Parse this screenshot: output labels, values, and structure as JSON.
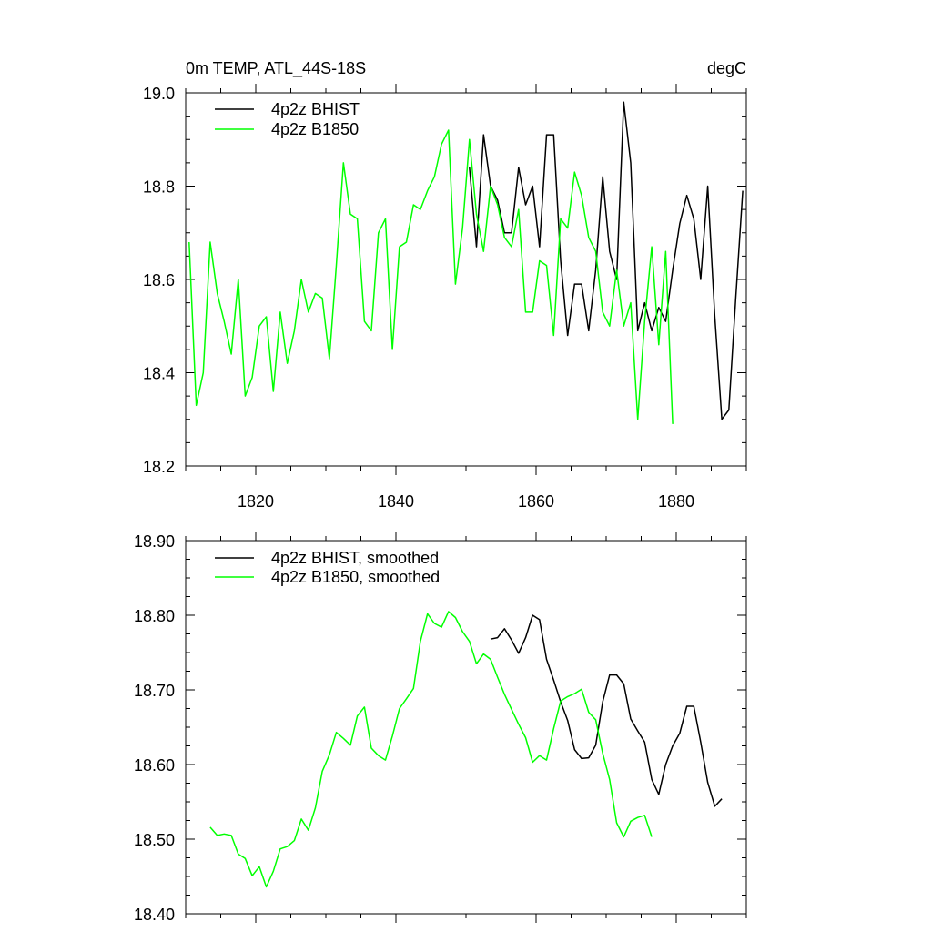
{
  "chart_data": [
    {
      "type": "line",
      "title": "0m TEMP, ATL_44S-18S",
      "units": "degC",
      "xlim": [
        1810,
        1890
      ],
      "ylim": [
        18.2,
        19.0
      ],
      "x_ticks": [
        1820,
        1840,
        1860,
        1880
      ],
      "x_tick_labels": [
        "1820",
        "1840",
        "1860",
        "1880"
      ],
      "y_ticks": [
        18.2,
        18.4,
        18.6,
        18.8,
        19.0
      ],
      "y_tick_labels": [
        "18.2",
        "18.4",
        "18.6",
        "18.8",
        "19.0"
      ],
      "legend_position": "top-left",
      "grid": false,
      "series": [
        {
          "name": "4p2z BHIST",
          "color": "#000000",
          "x": [
            1850.5,
            1851.5,
            1852.5,
            1853.5,
            1854.5,
            1855.5,
            1856.5,
            1857.5,
            1858.5,
            1859.5,
            1860.5,
            1861.5,
            1862.5,
            1863.5,
            1864.5,
            1865.5,
            1866.5,
            1867.5,
            1868.5,
            1869.5,
            1870.5,
            1871.5,
            1872.5,
            1873.5,
            1874.5,
            1875.5,
            1876.5,
            1877.5,
            1878.5,
            1879.5,
            1880.5,
            1881.5,
            1882.5,
            1883.5,
            1884.5,
            1885.5,
            1886.5,
            1887.5,
            1888.5,
            1889.5
          ],
          "values": [
            18.84,
            18.67,
            18.91,
            18.8,
            18.77,
            18.7,
            18.7,
            18.84,
            18.76,
            18.8,
            18.67,
            18.91,
            18.91,
            18.64,
            18.48,
            18.59,
            18.59,
            18.49,
            18.62,
            18.82,
            18.66,
            18.6,
            18.98,
            18.85,
            18.49,
            18.55,
            18.49,
            18.54,
            18.51,
            18.62,
            18.72,
            18.78,
            18.73,
            18.6,
            18.8,
            18.52,
            18.3,
            18.32,
            18.56,
            18.79
          ]
        },
        {
          "name": "4p2z B1850",
          "color": "#00ff00",
          "x": [
            1810.5,
            1811.5,
            1812.5,
            1813.5,
            1814.5,
            1815.5,
            1816.5,
            1817.5,
            1818.5,
            1819.5,
            1820.5,
            1821.5,
            1822.5,
            1823.5,
            1824.5,
            1825.5,
            1826.5,
            1827.5,
            1828.5,
            1829.5,
            1830.5,
            1831.5,
            1832.5,
            1833.5,
            1834.5,
            1835.5,
            1836.5,
            1837.5,
            1838.5,
            1839.5,
            1840.5,
            1841.5,
            1842.5,
            1843.5,
            1844.5,
            1845.5,
            1846.5,
            1847.5,
            1848.5,
            1849.5,
            1850.5,
            1851.5,
            1852.5,
            1853.5,
            1854.5,
            1855.5,
            1856.5,
            1857.5,
            1858.5,
            1859.5,
            1860.5,
            1861.5,
            1862.5,
            1863.5,
            1864.5,
            1865.5,
            1866.5,
            1867.5,
            1868.5,
            1869.5,
            1870.5,
            1871.5,
            1872.5,
            1873.5,
            1874.5,
            1875.5,
            1876.5,
            1877.5,
            1878.5,
            1879.5
          ],
          "values": [
            18.68,
            18.33,
            18.4,
            18.68,
            18.57,
            18.51,
            18.44,
            18.6,
            18.35,
            18.39,
            18.5,
            18.52,
            18.36,
            18.53,
            18.42,
            18.49,
            18.6,
            18.53,
            18.57,
            18.56,
            18.43,
            18.63,
            18.85,
            18.74,
            18.73,
            18.51,
            18.49,
            18.7,
            18.73,
            18.45,
            18.67,
            18.68,
            18.76,
            18.75,
            18.79,
            18.82,
            18.89,
            18.92,
            18.59,
            18.71,
            18.9,
            18.74,
            18.66,
            18.8,
            18.76,
            18.69,
            18.67,
            18.75,
            18.53,
            18.53,
            18.64,
            18.63,
            18.48,
            18.73,
            18.71,
            18.83,
            18.78,
            18.69,
            18.66,
            18.53,
            18.5,
            18.62,
            18.5,
            18.55,
            18.3,
            18.51,
            18.67,
            18.46,
            18.66,
            18.29
          ]
        }
      ]
    },
    {
      "type": "line",
      "xlim": [
        1810,
        1890
      ],
      "ylim": [
        18.4,
        18.9
      ],
      "y_ticks": [
        18.4,
        18.5,
        18.6,
        18.7,
        18.8,
        18.9
      ],
      "y_tick_labels": [
        "18.40",
        "18.50",
        "18.60",
        "18.70",
        "18.80",
        "18.90"
      ],
      "legend_position": "top-left",
      "grid": false,
      "series": [
        {
          "name": "4p2z BHIST, smoothed",
          "color": "#000000",
          "x": [
            1853.5,
            1854.5,
            1855.5,
            1856.5,
            1857.5,
            1858.5,
            1859.5,
            1860.5,
            1861.5,
            1862.5,
            1863.5,
            1864.5,
            1865.5,
            1866.5,
            1867.5,
            1868.5,
            1869.5,
            1870.5,
            1871.5,
            1872.5,
            1873.5,
            1874.5,
            1875.5,
            1876.5,
            1877.5,
            1878.5,
            1879.5,
            1880.5,
            1881.5,
            1882.5,
            1883.5,
            1884.5,
            1885.5,
            1886.5
          ],
          "values": [
            18.768,
            18.77,
            18.782,
            18.767,
            18.749,
            18.77,
            18.8,
            18.794,
            18.741,
            18.713,
            18.684,
            18.659,
            18.62,
            18.608,
            18.609,
            18.626,
            18.684,
            18.72,
            18.72,
            18.708,
            18.661,
            18.645,
            18.63,
            18.58,
            18.56,
            18.6,
            18.625,
            18.642,
            18.678,
            18.678,
            18.63,
            18.576,
            18.544,
            18.554
          ]
        },
        {
          "name": "4p2z B1850, smoothed",
          "color": "#00ff00",
          "x": [
            1813.5,
            1814.5,
            1815.5,
            1816.5,
            1817.5,
            1818.5,
            1819.5,
            1820.5,
            1821.5,
            1822.5,
            1823.5,
            1824.5,
            1825.5,
            1826.5,
            1827.5,
            1828.5,
            1829.5,
            1830.5,
            1831.5,
            1832.5,
            1833.5,
            1834.5,
            1835.5,
            1836.5,
            1837.5,
            1838.5,
            1839.5,
            1840.5,
            1841.5,
            1842.5,
            1843.5,
            1844.5,
            1845.5,
            1846.5,
            1847.5,
            1848.5,
            1849.5,
            1850.5,
            1851.5,
            1852.5,
            1853.5,
            1854.5,
            1855.5,
            1856.5,
            1857.5,
            1858.5,
            1859.5,
            1860.5,
            1861.5,
            1862.5,
            1863.5,
            1864.5,
            1865.5,
            1866.5,
            1867.5,
            1868.5,
            1869.5,
            1870.5,
            1871.5,
            1872.5,
            1873.5,
            1874.5,
            1875.5,
            1876.5
          ],
          "values": [
            18.516,
            18.505,
            18.507,
            18.505,
            18.48,
            18.474,
            18.451,
            18.463,
            18.436,
            18.457,
            18.487,
            18.49,
            18.498,
            18.527,
            18.512,
            18.542,
            18.591,
            18.613,
            18.643,
            18.635,
            18.626,
            18.665,
            18.677,
            18.622,
            18.612,
            18.606,
            18.638,
            18.675,
            18.688,
            18.702,
            18.765,
            18.802,
            18.789,
            18.784,
            18.805,
            18.797,
            18.778,
            18.765,
            18.735,
            18.748,
            18.741,
            18.717,
            18.694,
            18.674,
            18.654,
            18.636,
            18.603,
            18.612,
            18.606,
            18.648,
            18.685,
            18.691,
            18.695,
            18.701,
            18.67,
            18.66,
            18.615,
            18.58,
            18.522,
            18.503,
            18.524,
            18.529,
            18.532,
            18.503
          ]
        }
      ]
    }
  ]
}
